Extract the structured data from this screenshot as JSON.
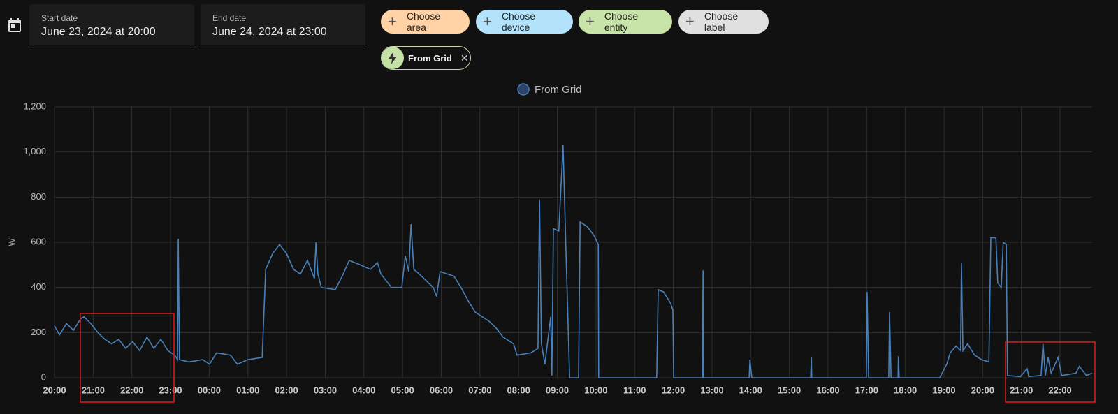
{
  "date_picker": {
    "start_label": "Start date",
    "start_value": "June 23, 2024 at 20:00",
    "end_label": "End date",
    "end_value": "June 24, 2024 at 23:00"
  },
  "target_chips": [
    "Choose area",
    "Choose device",
    "Choose entity",
    "Choose label"
  ],
  "selected_entity": "From Grid",
  "chart_data": {
    "type": "line",
    "ylabel": "W",
    "grid": true,
    "legend": "top",
    "xlim": [
      0,
      26.83
    ],
    "xticks": [
      {
        "value": 0,
        "label": "20:00"
      },
      {
        "value": 1,
        "label": "21:00"
      },
      {
        "value": 2,
        "label": "22:00"
      },
      {
        "value": 3,
        "label": "23:00"
      },
      {
        "value": 4,
        "label": "00:00"
      },
      {
        "value": 5,
        "label": "01:00"
      },
      {
        "value": 6,
        "label": "02:00"
      },
      {
        "value": 7,
        "label": "03:00"
      },
      {
        "value": 8,
        "label": "04:00"
      },
      {
        "value": 9,
        "label": "05:00"
      },
      {
        "value": 10,
        "label": "06:00"
      },
      {
        "value": 11,
        "label": "07:00"
      },
      {
        "value": 12,
        "label": "08:00"
      },
      {
        "value": 13,
        "label": "09:00"
      },
      {
        "value": 14,
        "label": "10:00"
      },
      {
        "value": 15,
        "label": "11:00"
      },
      {
        "value": 16,
        "label": "12:00"
      },
      {
        "value": 17,
        "label": "13:00"
      },
      {
        "value": 18,
        "label": "14:00"
      },
      {
        "value": 19,
        "label": "15:00"
      },
      {
        "value": 20,
        "label": "16:00"
      },
      {
        "value": 21,
        "label": "17:00"
      },
      {
        "value": 22,
        "label": "18:00"
      },
      {
        "value": 23,
        "label": "19:00"
      },
      {
        "value": 24,
        "label": "20:00"
      },
      {
        "value": 25,
        "label": "21:00"
      },
      {
        "value": 26,
        "label": "22:00"
      }
    ],
    "ylim": [
      0,
      1200
    ],
    "yticks": [
      0,
      200,
      400,
      600,
      800,
      {
        "value": 1000,
        "label": "1,000"
      },
      {
        "value": 1200,
        "label": "1,200"
      }
    ],
    "x": [
      0,
      0.13,
      0.31,
      0.49,
      0.67,
      0.76,
      0.94,
      1.12,
      1.3,
      1.48,
      1.66,
      1.84,
      2.02,
      2.2,
      2.39,
      2.57,
      2.75,
      2.93,
      3.11,
      3.18,
      3.2,
      3.23,
      3.47,
      3.83,
      4.01,
      4.19,
      4.55,
      4.73,
      5.0,
      5.37,
      5.46,
      5.64,
      5.82,
      6.0,
      6.18,
      6.36,
      6.54,
      6.72,
      6.76,
      6.81,
      6.9,
      7.26,
      7.44,
      7.62,
      7.9,
      8.17,
      8.35,
      8.44,
      8.71,
      8.98,
      9.07,
      9.16,
      9.22,
      9.29,
      9.43,
      9.61,
      9.79,
      9.88,
      9.97,
      10.33,
      10.51,
      10.7,
      10.88,
      11.24,
      11.42,
      11.6,
      11.87,
      11.96,
      12.32,
      12.5,
      12.54,
      12.59,
      12.68,
      12.83,
      12.86,
      12.9,
      13.04,
      13.15,
      13.22,
      13.32,
      13.55,
      13.59,
      13.77,
      13.95,
      14.06,
      14.07,
      15.57,
      15.61,
      15.75,
      15.93,
      15.99,
      16.01,
      16.75,
      16.77,
      16.78,
      17.96,
      17.98,
      18.03,
      19.55,
      19.57,
      19.58,
      20.99,
      21.01,
      21.05,
      21.57,
      21.59,
      21.63,
      21.81,
      21.82,
      21.84,
      22.89,
      23.07,
      23.16,
      23.31,
      23.43,
      23.45,
      23.49,
      23.61,
      23.79,
      23.97,
      24.16,
      24.21,
      24.34,
      24.39,
      24.48,
      24.53,
      24.61,
      24.64,
      24.97,
      25.15,
      25.19,
      25.51,
      25.56,
      25.62,
      25.69,
      25.77,
      25.95,
      26.04,
      26.41,
      26.5,
      26.68,
      26.83
    ],
    "series": [
      {
        "name": "From Grid",
        "color": "#4a80b8",
        "values": [
          230,
          190,
          240,
          210,
          260,
          270,
          240,
          200,
          170,
          150,
          170,
          130,
          160,
          120,
          180,
          130,
          170,
          120,
          100,
          80,
          615,
          80,
          70,
          80,
          60,
          110,
          100,
          60,
          80,
          90,
          480,
          550,
          590,
          550,
          480,
          460,
          520,
          440,
          600,
          460,
          400,
          390,
          450,
          520,
          500,
          480,
          510,
          460,
          400,
          400,
          540,
          470,
          680,
          480,
          460,
          430,
          400,
          360,
          470,
          450,
          400,
          340,
          290,
          250,
          220,
          180,
          150,
          100,
          110,
          130,
          790,
          150,
          60,
          270,
          10,
          660,
          650,
          1030,
          590,
          0,
          0,
          690,
          670,
          630,
          590,
          0,
          0,
          390,
          380,
          330,
          300,
          0,
          0,
          475,
          0,
          0,
          80,
          0,
          0,
          90,
          0,
          0,
          380,
          0,
          0,
          290,
          0,
          0,
          95,
          0,
          0,
          60,
          110,
          140,
          120,
          510,
          120,
          150,
          100,
          80,
          70,
          620,
          620,
          420,
          400,
          600,
          590,
          10,
          5,
          40,
          5,
          10,
          150,
          10,
          90,
          20,
          90,
          10,
          20,
          50,
          10,
          20
        ]
      }
    ]
  }
}
